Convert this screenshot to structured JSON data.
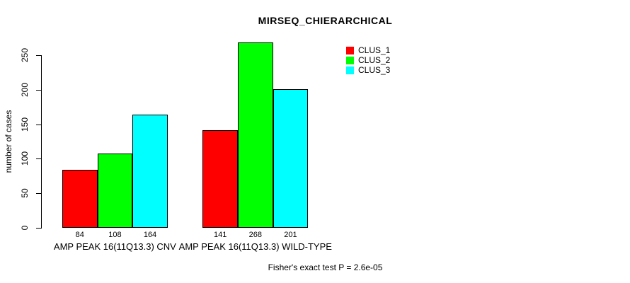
{
  "chart_data": {
    "type": "bar",
    "title": "MIRSEQ_CHIERARCHICAL",
    "xlabel": "",
    "ylabel": "number of cases",
    "ylim": [
      0,
      250
    ],
    "yticks": [
      0,
      50,
      100,
      150,
      200,
      250
    ],
    "grid": false,
    "legend_position": "top-right-inside",
    "bar_value_labels": true,
    "categories": [
      "AMP PEAK 16(11Q13.3) CNV",
      "AMP PEAK 16(11Q13.3) WILD-TYPE"
    ],
    "series": [
      {
        "name": "CLUS_1",
        "color": "#ff0000",
        "values": [
          84,
          141
        ]
      },
      {
        "name": "CLUS_2",
        "color": "#00ff00",
        "values": [
          108,
          268
        ]
      },
      {
        "name": "CLUS_3",
        "color": "#00ffff",
        "values": [
          164,
          201
        ]
      }
    ],
    "annotation": "Fisher's exact test P = 2.6e-05"
  }
}
